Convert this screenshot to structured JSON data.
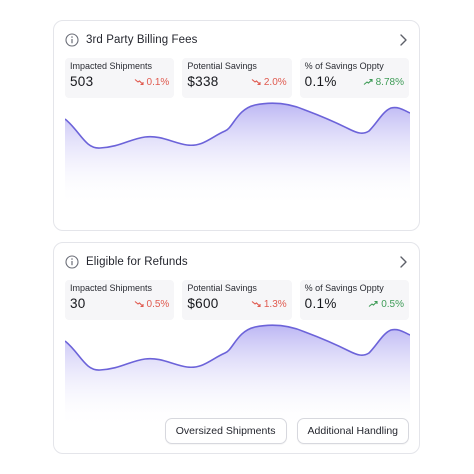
{
  "colors": {
    "accent": "#6c63d9",
    "chart_line": "#6c63d9",
    "chart_fill": "#c9c4f5",
    "negative": "#e05a4f",
    "positive": "#3f9c57"
  },
  "cards": [
    {
      "title": "3rd Party Billing Fees",
      "metrics": [
        {
          "label": "Impacted Shipments",
          "value": "503",
          "change": "0.1%",
          "trend": "down"
        },
        {
          "label": "Potential Savings",
          "value": "$338",
          "change": "2.0%",
          "trend": "down"
        },
        {
          "label": "% of Savings Oppty",
          "value": "0.1%",
          "change": "8.78%",
          "trend": "up"
        }
      ]
    },
    {
      "title": "Eligible for Refunds",
      "metrics": [
        {
          "label": "Impacted Shipments",
          "value": "30",
          "change": "0.5%",
          "trend": "down"
        },
        {
          "label": "Potential Savings",
          "value": "$600",
          "change": "1.3%",
          "trend": "down"
        },
        {
          "label": "% of Savings Oppty",
          "value": "0.1%",
          "change": "0.5%",
          "trend": "up"
        }
      ],
      "buttons": [
        "Oversized Shipments",
        "Additional Handling"
      ]
    }
  ],
  "icons": {
    "info": "info-icon",
    "chevron": "chevron-right-icon",
    "trend_down": "trend-down-icon",
    "trend_up": "trend-up-icon"
  }
}
